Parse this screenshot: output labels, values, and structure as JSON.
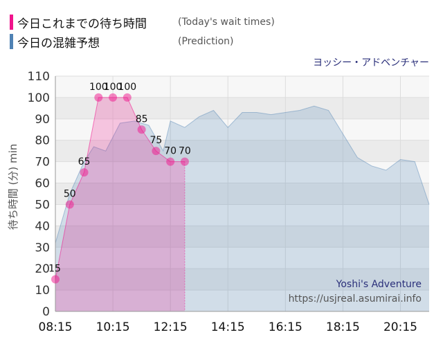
{
  "legend": {
    "today_jp": "今日これまでの待ち時間",
    "today_en": "(Today's wait times)",
    "pred_jp": "今日の混雑予想",
    "pred_en": "(Prediction)",
    "today_color": "#f0148c",
    "pred_color": "#4f82b4"
  },
  "attraction": "ヨッシー・アドベンチャー",
  "watermark": {
    "name": "Yoshi's Adventure",
    "url": "https://usjreal.asumirai.info"
  },
  "chart_data": {
    "type": "area",
    "ylabel": "待ち時間 (分) min",
    "ylim": [
      0,
      110
    ],
    "yticks": [
      0,
      10,
      20,
      30,
      40,
      50,
      60,
      70,
      80,
      90,
      100,
      110
    ],
    "xlim": [
      "08:15",
      "21:15"
    ],
    "xticks": [
      "08:15",
      "10:15",
      "12:15",
      "14:15",
      "16:15",
      "18:15",
      "20:15"
    ],
    "grid": true,
    "series": [
      {
        "name": "今日これまでの待ち時間",
        "color": "#f0148c",
        "x": [
          "08:15",
          "08:45",
          "09:15",
          "09:45",
          "10:15",
          "10:45",
          "11:15",
          "11:45",
          "12:15",
          "12:45"
        ],
        "values": [
          15,
          50,
          65,
          100,
          100,
          100,
          85,
          75,
          70,
          70
        ],
        "labels": [
          "15",
          "50",
          "65",
          "100",
          "100",
          "100",
          "85",
          "75",
          "70",
          "70"
        ]
      },
      {
        "name": "今日の混雑予想",
        "color": "#4f82b4",
        "x": [
          "08:15",
          "08:45",
          "09:15",
          "09:35",
          "10:00",
          "10:30",
          "11:00",
          "11:30",
          "12:00",
          "12:15",
          "12:45",
          "13:15",
          "13:45",
          "14:15",
          "14:45",
          "15:15",
          "15:45",
          "16:15",
          "16:45",
          "17:15",
          "17:45",
          "18:15",
          "18:45",
          "19:15",
          "19:45",
          "20:15",
          "20:45",
          "21:15"
        ],
        "values": [
          32,
          55,
          70,
          77,
          75,
          88,
          89,
          87,
          75,
          89,
          86,
          91,
          94,
          86,
          93,
          93,
          92,
          93,
          94,
          96,
          94,
          83,
          72,
          68,
          66,
          71,
          70,
          50
        ]
      }
    ]
  }
}
